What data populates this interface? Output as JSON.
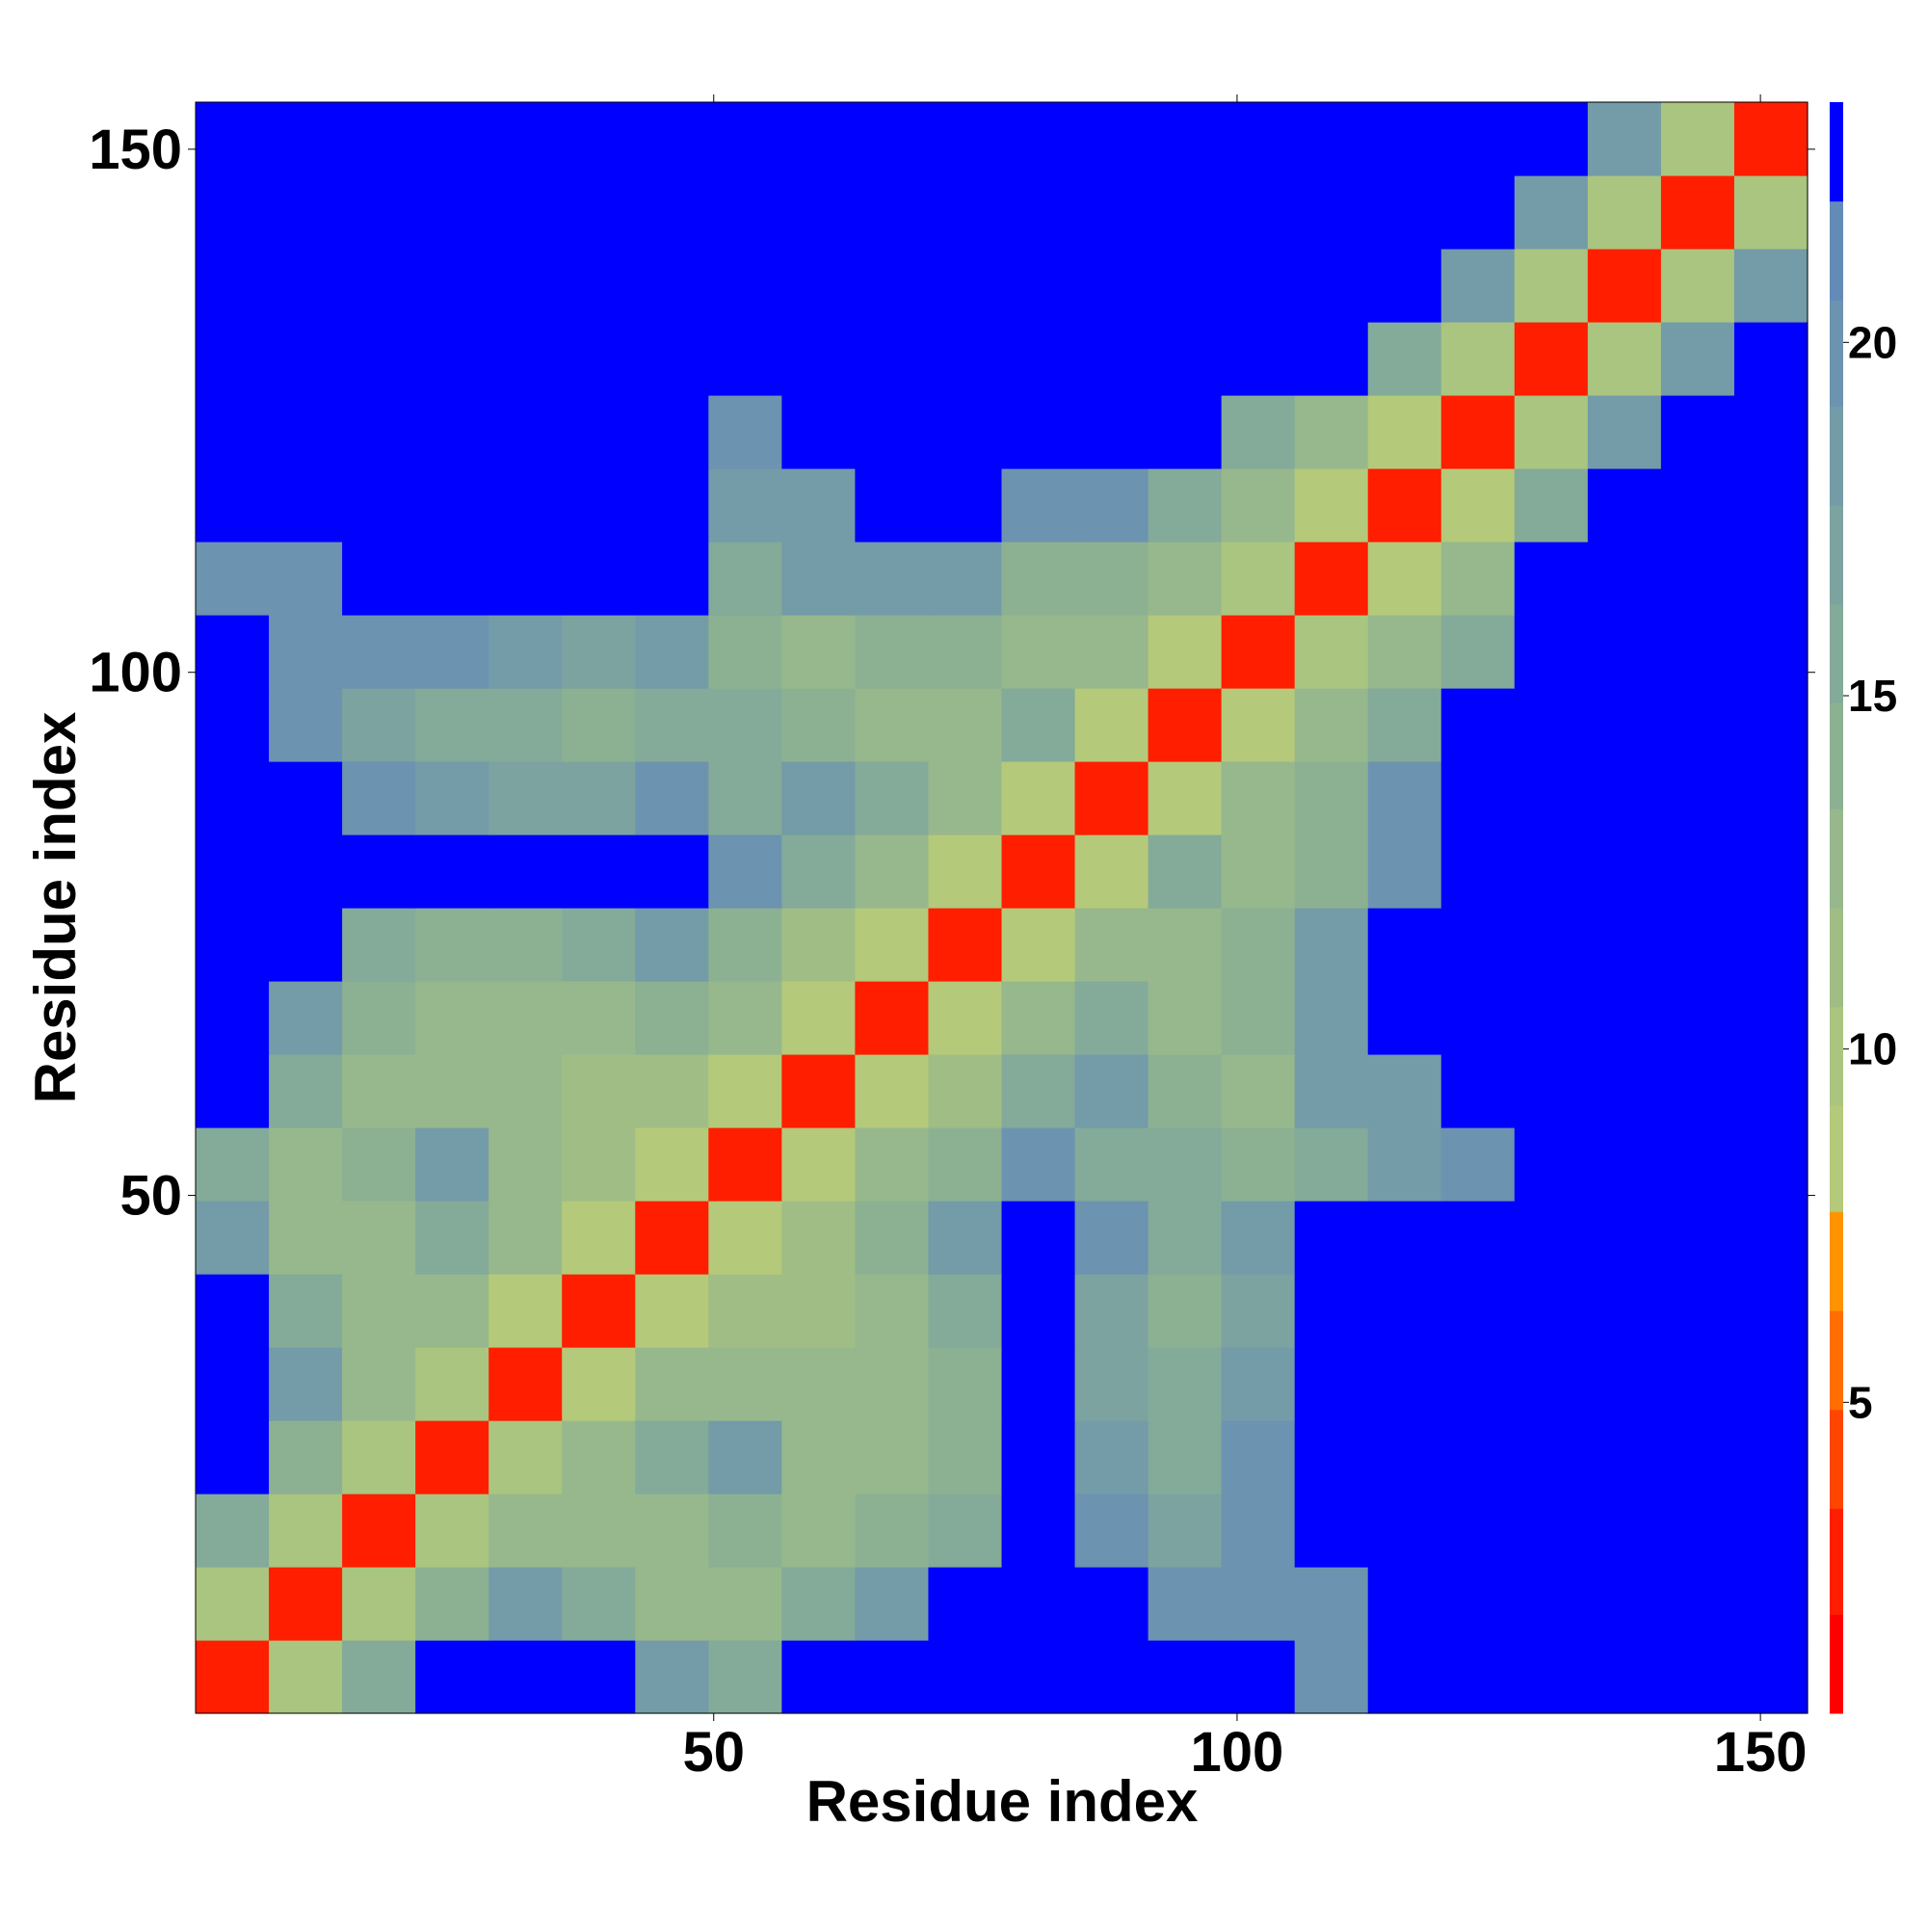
{
  "chart_data": {
    "type": "heatmap",
    "xlabel": "Residue index",
    "ylabel": "Residue index",
    "xlim": [
      0.5,
      154.5
    ],
    "ylim": [
      0.5,
      154.5
    ],
    "xticks": [
      50,
      100,
      150
    ],
    "yticks": [
      50,
      100,
      150
    ],
    "xbins": [
      0.5,
      7.5,
      14.5,
      21.5,
      28.5,
      35.5,
      42.5,
      49.5,
      56.5,
      63.5,
      70.5,
      77.5,
      84.5,
      91.5,
      98.5,
      105.5,
      112.5,
      119.5,
      126.5,
      133.5,
      140.5,
      147.5,
      154.5
    ],
    "ybins": [
      0.5,
      7.5,
      14.5,
      21.5,
      28.5,
      35.5,
      42.5,
      49.5,
      56.5,
      63.5,
      70.5,
      77.5,
      84.5,
      91.5,
      98.5,
      105.5,
      112.5,
      119.5,
      126.5,
      133.5,
      140.5,
      147.5,
      154.5
    ],
    "values": [
      [
        3,
        10,
        16,
        23,
        23,
        23,
        18,
        16,
        23,
        23,
        23,
        23,
        23,
        23,
        23,
        20,
        23,
        23,
        23,
        23,
        23,
        23
      ],
      [
        10,
        3,
        10,
        14,
        18,
        16,
        13,
        13,
        16,
        18,
        23,
        23,
        23,
        20,
        20,
        20,
        23,
        23,
        23,
        23,
        23,
        23
      ],
      [
        16,
        10,
        3,
        10,
        12,
        13,
        12,
        14,
        13,
        14,
        16,
        23,
        20,
        17,
        20,
        23,
        23,
        23,
        23,
        23,
        23,
        23
      ],
      [
        23,
        14,
        10,
        3,
        10,
        12,
        16,
        18,
        13,
        12,
        14,
        23,
        18,
        16,
        20,
        23,
        23,
        23,
        23,
        23,
        23,
        23
      ],
      [
        23,
        18,
        12,
        10,
        3,
        9,
        12,
        13,
        12,
        12,
        14,
        23,
        17,
        15,
        18,
        23,
        23,
        23,
        23,
        23,
        23,
        23
      ],
      [
        23,
        16,
        13,
        12,
        9,
        3,
        9,
        11,
        11,
        13,
        15,
        23,
        17,
        14,
        17,
        23,
        23,
        23,
        23,
        23,
        23,
        23
      ],
      [
        18,
        13,
        12,
        16,
        12,
        9,
        3,
        8,
        11,
        14,
        18,
        23,
        20,
        16,
        18,
        23,
        23,
        23,
        23,
        23,
        23,
        23
      ],
      [
        16,
        13,
        14,
        18,
        13,
        11,
        8,
        3,
        8,
        12,
        14,
        20,
        16,
        15,
        14,
        16,
        18,
        20,
        23,
        23,
        23,
        23
      ],
      [
        23,
        16,
        13,
        13,
        12,
        11,
        11,
        8,
        3,
        9,
        11,
        16,
        18,
        14,
        13,
        18,
        18,
        23,
        23,
        23,
        23,
        23
      ],
      [
        23,
        18,
        14,
        12,
        12,
        13,
        14,
        12,
        9,
        3,
        9,
        13,
        15,
        12,
        14,
        18,
        23,
        23,
        23,
        23,
        23,
        23
      ],
      [
        23,
        23,
        16,
        14,
        14,
        15,
        18,
        14,
        11,
        9,
        3,
        9,
        12,
        12,
        14,
        18,
        23,
        23,
        23,
        23,
        23,
        23
      ],
      [
        23,
        23,
        23,
        23,
        23,
        23,
        23,
        20,
        16,
        13,
        9,
        3,
        9,
        16,
        12,
        14,
        20,
        23,
        23,
        23,
        23,
        23
      ],
      [
        23,
        23,
        20,
        18,
        17,
        17,
        20,
        16,
        18,
        15,
        12,
        9,
        3,
        9,
        12,
        14,
        20,
        23,
        23,
        23,
        23,
        23
      ],
      [
        23,
        20,
        17,
        16,
        15,
        14,
        16,
        15,
        14,
        12,
        12,
        16,
        9,
        3,
        9,
        13,
        16,
        23,
        23,
        23,
        23,
        23
      ],
      [
        23,
        20,
        20,
        20,
        18,
        17,
        18,
        14,
        13,
        14,
        14,
        12,
        12,
        9,
        3,
        10,
        12,
        16,
        23,
        23,
        23,
        23
      ],
      [
        20,
        20,
        23,
        23,
        23,
        23,
        23,
        16,
        18,
        18,
        18,
        14,
        14,
        13,
        10,
        3,
        9,
        12,
        23,
        23,
        23,
        23
      ],
      [
        23,
        23,
        23,
        23,
        23,
        23,
        23,
        18,
        18,
        23,
        23,
        20,
        20,
        16,
        12,
        9,
        3,
        9,
        16,
        23,
        23,
        23
      ],
      [
        23,
        23,
        23,
        23,
        23,
        23,
        23,
        20,
        23,
        23,
        23,
        23,
        23,
        23,
        16,
        12,
        9,
        3,
        10,
        18,
        23,
        23
      ],
      [
        23,
        23,
        23,
        23,
        23,
        23,
        23,
        23,
        23,
        23,
        23,
        23,
        23,
        23,
        23,
        23,
        16,
        10,
        3,
        10,
        18,
        23
      ],
      [
        23,
        23,
        23,
        23,
        23,
        23,
        23,
        23,
        23,
        23,
        23,
        23,
        23,
        23,
        23,
        23,
        23,
        18,
        10,
        3,
        10,
        18
      ],
      [
        23,
        23,
        23,
        23,
        23,
        23,
        23,
        23,
        23,
        23,
        23,
        23,
        23,
        23,
        23,
        23,
        23,
        23,
        18,
        10,
        3,
        10
      ],
      [
        23,
        23,
        23,
        23,
        23,
        23,
        23,
        23,
        23,
        23,
        23,
        23,
        23,
        23,
        23,
        23,
        23,
        23,
        23,
        18,
        10,
        3
      ]
    ],
    "colorbar": {
      "lim": [
        0.6,
        23.4
      ],
      "ticks": [
        5,
        10,
        15,
        20
      ],
      "levels": [
        0.6,
        2.0,
        3.5,
        4.9,
        6.3,
        7.7,
        9.2,
        10.6,
        12.0,
        13.4,
        14.9,
        16.3,
        17.7,
        19.1,
        20.6,
        22.0,
        23.4
      ],
      "colors": [
        "#ff0000",
        "#ff1e00",
        "#ff4600",
        "#ff6e00",
        "#ff9400",
        "#b5c97a",
        "#aac580",
        "#a0bd86",
        "#96b88c",
        "#8cb192",
        "#84aa99",
        "#7ca3a0",
        "#749ba8",
        "#6c93b0",
        "#648bb8",
        "#0000ff"
      ]
    }
  }
}
